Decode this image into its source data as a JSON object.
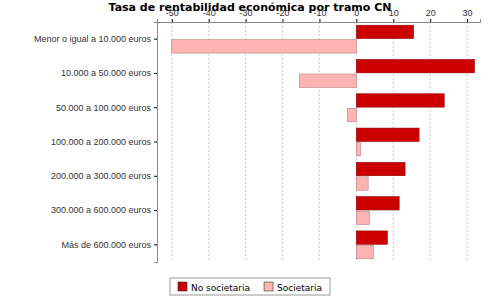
{
  "chart_data": {
    "type": "bar",
    "title": "Tasa de rentabilidad económica por tramo CN",
    "orientation": "horizontal",
    "categories": [
      "Menor o igual a 10.000 euros",
      "10.000 a 50.000 euros",
      "50.000 a 100.000 euros",
      "100.000 a 200.000 euros",
      "200.000 a 300.000 euros",
      "300.000 a 600.000 euros",
      "Más de 600.000 euros"
    ],
    "series": [
      {
        "name": "No societaria",
        "color": "#cc0000",
        "values": [
          15.5,
          32,
          23.8,
          17,
          13.2,
          11.6,
          8.4
        ]
      },
      {
        "name": "Societaria",
        "color": "#ffb3b3",
        "values": [
          -50,
          -15.4,
          -2.4,
          1.1,
          3.2,
          3.5,
          4.6
        ]
      }
    ],
    "xlim": [
      -54,
      33.5
    ],
    "xticks": [
      -50,
      -40,
      -30,
      -20,
      -10,
      0,
      10,
      20,
      30
    ],
    "grid": true,
    "legend": "bottom"
  }
}
